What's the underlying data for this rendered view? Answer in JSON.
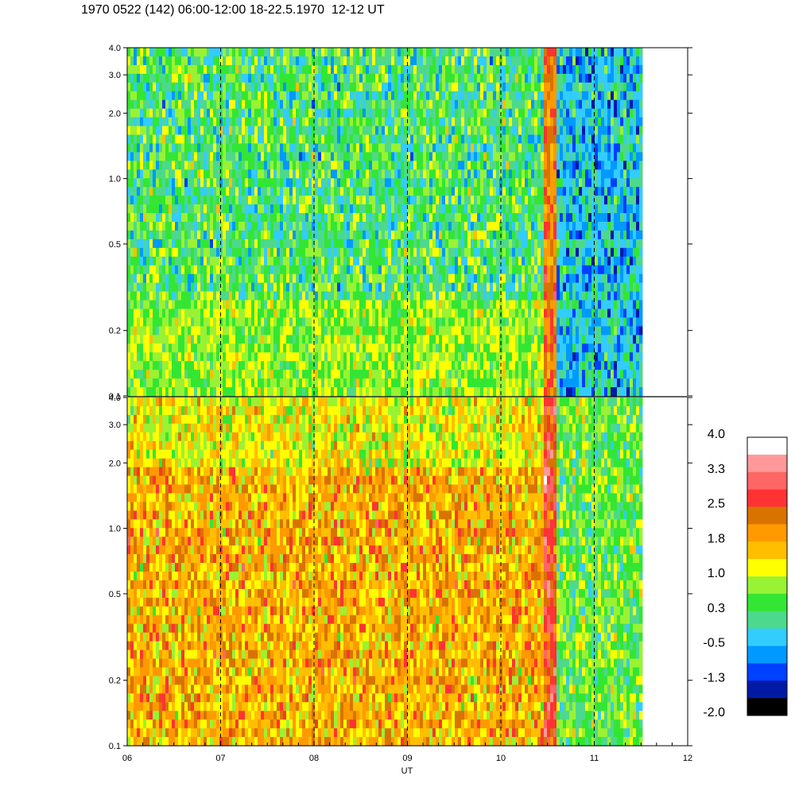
{
  "title": "1970 0522 (142) 06:00-12:00 18-22.5.1970  12-12 UT",
  "colors": {
    "levels": [
      "#000000",
      "#001aa6",
      "#0040ff",
      "#0099ff",
      "#33ccff",
      "#4dd98c",
      "#33e633",
      "#99f233",
      "#ffff00",
      "#ffbf00",
      "#ff9900",
      "#d97300",
      "#ff3333",
      "#ff6666",
      "#ff9999",
      "#ffffff"
    ],
    "dashed_marker": "#000000"
  },
  "chart_data": [
    {
      "type": "heatmap",
      "name": "upper-panel",
      "title": "",
      "x_ticks": [
        "06",
        "07",
        "08",
        "09",
        "10",
        "11",
        "12"
      ],
      "x_range": [
        6,
        12
      ],
      "y_scale": "log",
      "y_range": [
        0.1,
        4.0
      ],
      "y_ticks": [
        "0.1",
        "0.2",
        "0.5",
        "1.0",
        "2.0",
        "3.0",
        "4.0"
      ],
      "data_end_x": 11.5,
      "dashed_lines_x": [
        7,
        8,
        9,
        10,
        11
      ],
      "dominant_levels_by_time": [
        {
          "x_from": 6.0,
          "x_to": 10.45,
          "level_range": [
            -1.3,
            1.0
          ]
        },
        {
          "x_from": 10.45,
          "x_to": 10.58,
          "level_range": [
            1.8,
            2.5
          ]
        },
        {
          "x_from": 10.58,
          "x_to": 11.5,
          "level_range": [
            -2.0,
            0.3
          ]
        }
      ]
    },
    {
      "type": "heatmap",
      "name": "lower-panel",
      "title": "",
      "xlabel": "UT",
      "x_ticks": [
        "06",
        "07",
        "08",
        "09",
        "10",
        "11",
        "12"
      ],
      "x_range": [
        6,
        12
      ],
      "y_scale": "log",
      "y_range": [
        0.1,
        4.0
      ],
      "y_ticks": [
        "0.1",
        "0.2",
        "0.5",
        "1.0",
        "2.0",
        "3.0",
        "4.0"
      ],
      "data_end_x": 11.5,
      "dashed_lines_x": [
        7,
        8,
        9,
        10,
        11
      ],
      "dominant_levels_by_time": [
        {
          "x_from": 6.0,
          "x_to": 10.45,
          "level_range": [
            0.3,
            2.5
          ]
        },
        {
          "x_from": 10.45,
          "x_to": 10.58,
          "level_range": [
            1.8,
            3.3
          ]
        },
        {
          "x_from": 10.58,
          "x_to": 11.5,
          "level_range": [
            -0.5,
            1.0
          ]
        }
      ]
    }
  ],
  "colorbar": {
    "labels": [
      "4.0",
      "3.3",
      "2.5",
      "1.8",
      "1.0",
      "0.3",
      "-0.5",
      "-1.3",
      "-2.0"
    ]
  }
}
